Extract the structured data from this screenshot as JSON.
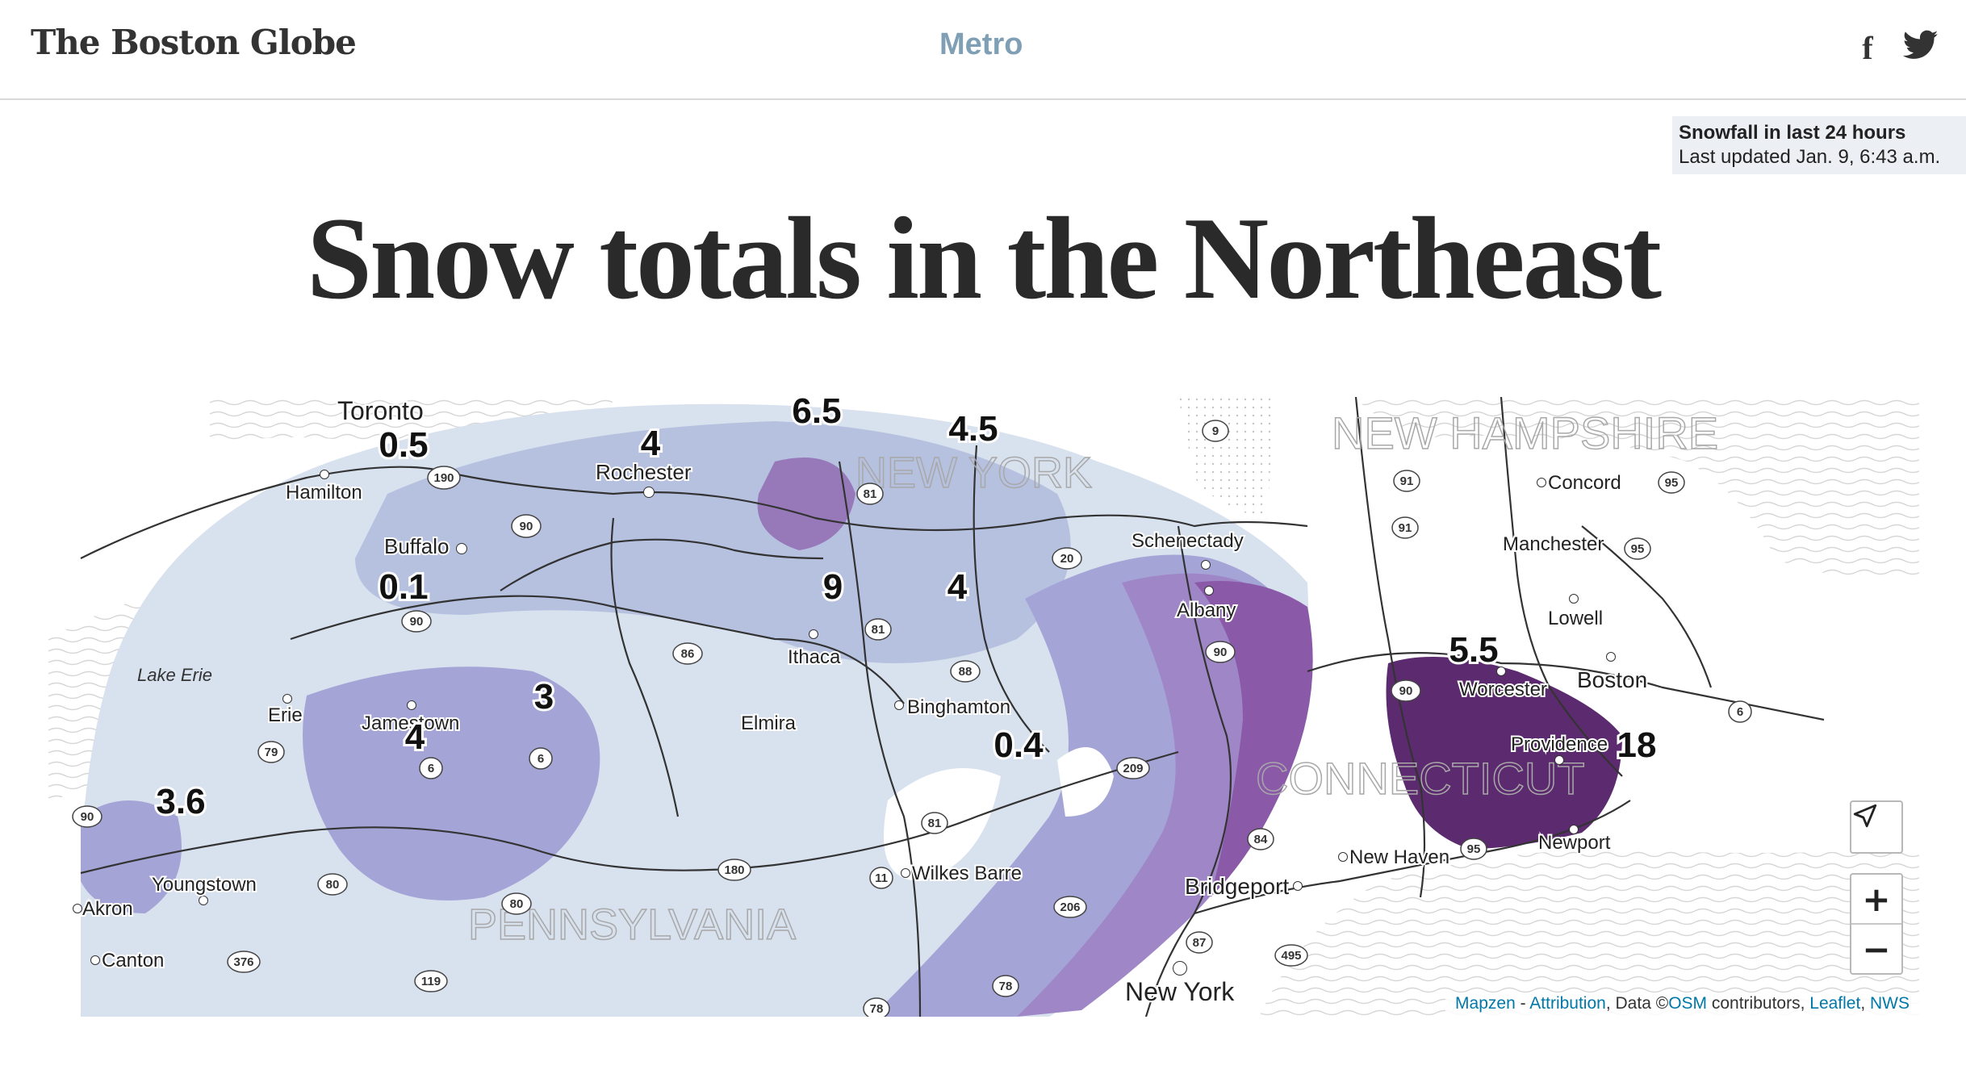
{
  "header": {
    "logo": "The Boston Globe",
    "section": "Metro",
    "social": [
      "facebook-icon",
      "twitter-icon"
    ],
    "facebook_glyph": "f"
  },
  "info": {
    "title": "Snowfall in last 24 hours",
    "updated": "Last updated Jan. 9, 6:43 a.m."
  },
  "headline": "Snow totals in the Northeast",
  "map": {
    "states": [
      "NEW HAMPSHIRE",
      "NEW YORK",
      "CONNECTICUT",
      "PENNSYLVANIA"
    ],
    "lake": "Lake Erie",
    "cities": [
      "Toronto",
      "Hamilton",
      "Rochester",
      "Buffalo",
      "Schenectady",
      "Albany",
      "Ithaca",
      "Binghamton",
      "Elmira",
      "Jamestown",
      "Erie",
      "Youngstown",
      "Akron",
      "Canton",
      "Wilkes Barre",
      "Bridgeport",
      "New York",
      "New Haven",
      "Newport",
      "Providence",
      "Worcester",
      "Boston",
      "Lowell",
      "Manchester",
      "Concord"
    ],
    "snow_totals": [
      "6.5",
      "4.5",
      "0.5",
      "4",
      "0.1",
      "9",
      "4",
      "5.5",
      "3",
      "4",
      "3.6",
      "0.4",
      "18"
    ],
    "highway_shields": [
      "190",
      "90",
      "9",
      "81",
      "20",
      "91",
      "91",
      "95",
      "95",
      "90",
      "81",
      "86",
      "88",
      "90",
      "90",
      "79",
      "6",
      "6",
      "6",
      "209",
      "81",
      "84",
      "95",
      "180",
      "11",
      "80",
      "80",
      "206",
      "87",
      "495",
      "376",
      "119",
      "78",
      "78",
      "90"
    ],
    "controls": {
      "locate_icon": "locate-arrow-icon",
      "zoom_in": "+",
      "zoom_out": "−"
    },
    "attribution": {
      "mapzen": "Mapzen",
      "sep1": " - ",
      "attribution": "Attribution",
      "data_prefix": ", Data ©",
      "osm": "OSM",
      "contributors": " contributors, ",
      "leaflet": "Leaflet",
      "sep2": ", ",
      "nws": "NWS"
    },
    "colors": {
      "snow_lightest": "#d8e1ee",
      "snow_light": "#b6c1e0",
      "snow_mid": "#a4a4d6",
      "snow_deep": "#9f86c7",
      "snow_heavy": "#8a5aa8",
      "snow_max": "#5c2a6e",
      "roads": "#333333",
      "water_pattern": "#d9d9d9"
    }
  }
}
